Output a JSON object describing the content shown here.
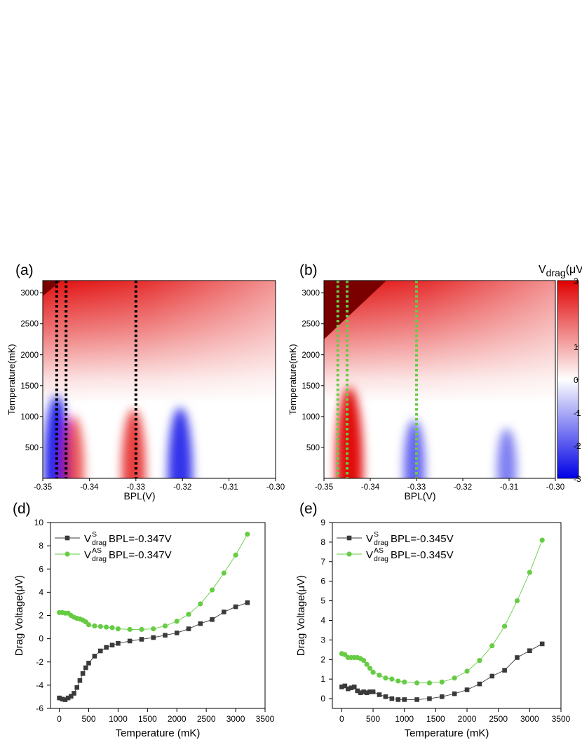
{
  "colors": {
    "red": "#e00000",
    "blue": "#0000e6",
    "darkred": "#7a0000",
    "series_s": "#3a3a3a",
    "series_as": "#66cc44",
    "marker_black": "#000000",
    "marker_green": "#66cc44"
  },
  "chart_data": [
    {
      "id": "a",
      "type": "heatmap",
      "panel_label": "(a)",
      "xlabel": "BPL(V)",
      "ylabel": "Temperature(mK)",
      "xlim": [
        -0.35,
        -0.3
      ],
      "ylim": [
        0,
        3200
      ],
      "xticks": [
        "-0.35",
        "-0.34",
        "-0.33",
        "-0.32",
        "-0.31",
        "-0.30"
      ],
      "xtick_values": [
        -0.35,
        -0.34,
        -0.33,
        -0.32,
        -0.31,
        -0.3
      ],
      "yticks": [
        "500",
        "1000",
        "1500",
        "2000",
        "2500",
        "3000"
      ],
      "ytick_values": [
        500,
        1000,
        1500,
        2000,
        2500,
        3000
      ],
      "marker_lines_bpl": [
        -0.347,
        -0.345,
        -0.33
      ],
      "marker_line_color": "black",
      "saturation_boundary": [
        [
          -0.35,
          2950
        ],
        [
          -0.346,
          3200
        ]
      ],
      "features": [
        {
          "bpl": -0.347,
          "temp": 200,
          "sign": -1,
          "value": 1.0
        },
        {
          "bpl": -0.3435,
          "temp": 150,
          "sign": 1,
          "value": 0.6
        },
        {
          "bpl": -0.3305,
          "temp": 120,
          "sign": 1,
          "value": 0.8
        },
        {
          "bpl": -0.3205,
          "temp": 80,
          "sign": -1,
          "value": 0.9
        }
      ]
    },
    {
      "id": "b",
      "type": "heatmap",
      "panel_label": "(b)",
      "xlabel": "BPL(V)",
      "ylabel": "Temperature(mK)",
      "xlim": [
        -0.35,
        -0.3
      ],
      "ylim": [
        0,
        3200
      ],
      "xticks": [
        "-0.35",
        "-0.34",
        "-0.33",
        "-0.32",
        "-0.31",
        "-0.30"
      ],
      "xtick_values": [
        -0.35,
        -0.34,
        -0.33,
        -0.32,
        -0.31,
        -0.3
      ],
      "yticks": [
        "500",
        "1000",
        "1500",
        "2000",
        "2500",
        "3000"
      ],
      "ytick_values": [
        500,
        1000,
        1500,
        2000,
        2500,
        3000
      ],
      "marker_lines_bpl": [
        -0.347,
        -0.345,
        -0.33
      ],
      "marker_line_color": "green",
      "saturation_boundary": [
        [
          -0.35,
          2250
        ],
        [
          -0.3365,
          3200
        ]
      ],
      "colorbar_title_main": "V",
      "colorbar_title_sub": "drag",
      "colorbar_title_tail": "(μV",
      "colorbar_ticks": [
        "3",
        "1",
        "0",
        "-1",
        "-2",
        "-3"
      ],
      "colorbar_tick_values": [
        3,
        1,
        0,
        -1,
        -2,
        -3
      ],
      "features": [
        {
          "bpl": -0.3445,
          "temp": 200,
          "sign": 1,
          "value": 1.2
        },
        {
          "bpl": -0.3305,
          "temp": 150,
          "sign": -1,
          "value": 0.5
        },
        {
          "bpl": -0.3105,
          "temp": 150,
          "sign": -1,
          "value": 0.3
        }
      ]
    },
    {
      "id": "d",
      "type": "line",
      "panel_label": "(d)",
      "xlabel": "Temperature (mK)",
      "ylabel": "Drag Voltage(μV)",
      "xlim": [
        -150,
        3500
      ],
      "ylim": [
        -6,
        10
      ],
      "xticks": [
        "0",
        "500",
        "1000",
        "1500",
        "2000",
        "2500",
        "3000",
        "3500"
      ],
      "xtick_values": [
        0,
        500,
        1000,
        1500,
        2000,
        2500,
        3000,
        3500
      ],
      "yticks": [
        "-6",
        "-4",
        "-2",
        "0",
        "2",
        "4",
        "6",
        "8",
        "10"
      ],
      "ytick_values": [
        -6,
        -4,
        -2,
        0,
        2,
        4,
        6,
        8,
        10
      ],
      "series": [
        {
          "name": "V_drag^S BPL=-0.347V",
          "label_main": "V",
          "label_sup": "S",
          "label_sub": "drag",
          "label_tail": " BPL=-0.347V",
          "marker": "square",
          "x": [
            0,
            50,
            100,
            150,
            200,
            250,
            300,
            350,
            400,
            450,
            500,
            600,
            700,
            800,
            900,
            1000,
            1200,
            1400,
            1600,
            1800,
            2000,
            2200,
            2400,
            2600,
            2800,
            3000,
            3200
          ],
          "y": [
            -5.1,
            -5.2,
            -5.25,
            -5.1,
            -4.95,
            -4.7,
            -4.2,
            -3.6,
            -3.0,
            -2.5,
            -2.1,
            -1.5,
            -1.05,
            -0.75,
            -0.55,
            -0.4,
            -0.2,
            -0.05,
            0.1,
            0.3,
            0.5,
            0.85,
            1.3,
            1.65,
            2.3,
            2.75,
            3.1
          ]
        },
        {
          "name": "V_drag^AS BPL=-0.347V",
          "label_main": "V",
          "label_sup": "AS",
          "label_sub": "drag",
          "label_tail": " BPL=-0.347V",
          "marker": "circle",
          "x": [
            0,
            50,
            100,
            150,
            200,
            250,
            300,
            350,
            400,
            450,
            500,
            600,
            700,
            800,
            900,
            1000,
            1200,
            1400,
            1600,
            1800,
            2000,
            2200,
            2400,
            2600,
            2800,
            3000,
            3200
          ],
          "y": [
            2.25,
            2.25,
            2.2,
            2.2,
            2.0,
            1.85,
            1.75,
            1.7,
            1.6,
            1.45,
            1.2,
            1.1,
            1.05,
            1.0,
            0.95,
            0.85,
            0.8,
            0.8,
            0.85,
            1.1,
            1.5,
            2.1,
            3.0,
            4.2,
            5.65,
            7.2,
            9.0
          ]
        }
      ]
    },
    {
      "id": "e",
      "type": "line",
      "panel_label": "(e)",
      "xlabel": "Temperature (mK)",
      "ylabel": "Drag Voltage(μV)",
      "xlim": [
        -150,
        3500
      ],
      "ylim": [
        -0.5,
        9
      ],
      "xticks": [
        "0",
        "500",
        "1000",
        "1500",
        "2000",
        "2500",
        "3000",
        "3500"
      ],
      "xtick_values": [
        0,
        500,
        1000,
        1500,
        2000,
        2500,
        3000,
        3500
      ],
      "yticks": [
        "0",
        "1",
        "2",
        "3",
        "4",
        "5",
        "6",
        "7",
        "8",
        "9"
      ],
      "ytick_values": [
        0,
        1,
        2,
        3,
        4,
        5,
        6,
        7,
        8,
        9
      ],
      "series": [
        {
          "name": "V_drag^S BPL=-0.345V",
          "label_main": "V",
          "label_sup": "S",
          "label_sub": "drag",
          "label_tail": " BPL=-0.345V",
          "marker": "square",
          "x": [
            0,
            50,
            100,
            150,
            200,
            250,
            300,
            350,
            400,
            450,
            500,
            600,
            700,
            800,
            900,
            1000,
            1200,
            1400,
            1600,
            1800,
            2000,
            2200,
            2400,
            2600,
            2800,
            3000,
            3200
          ],
          "y": [
            0.6,
            0.65,
            0.5,
            0.55,
            0.6,
            0.4,
            0.3,
            0.35,
            0.3,
            0.35,
            0.35,
            0.2,
            0.1,
            0.0,
            -0.05,
            -0.05,
            -0.05,
            0.0,
            0.1,
            0.25,
            0.45,
            0.75,
            1.15,
            1.45,
            2.1,
            2.45,
            2.8
          ]
        },
        {
          "name": "V_drag^AS BPL=-0.345V",
          "label_main": "V",
          "label_sup": "AS",
          "label_sub": "drag",
          "label_tail": " BPL=-0.345V",
          "marker": "circle",
          "x": [
            0,
            50,
            100,
            150,
            200,
            250,
            300,
            350,
            400,
            450,
            500,
            600,
            700,
            800,
            900,
            1000,
            1200,
            1400,
            1600,
            1800,
            2000,
            2200,
            2400,
            2600,
            2800,
            3000,
            3200
          ],
          "y": [
            2.3,
            2.25,
            2.1,
            2.1,
            2.1,
            2.1,
            2.05,
            1.95,
            1.75,
            1.55,
            1.35,
            1.2,
            1.05,
            1.0,
            0.9,
            0.85,
            0.8,
            0.8,
            0.85,
            1.05,
            1.4,
            1.95,
            2.7,
            3.7,
            5.0,
            6.45,
            8.1
          ]
        }
      ]
    }
  ]
}
